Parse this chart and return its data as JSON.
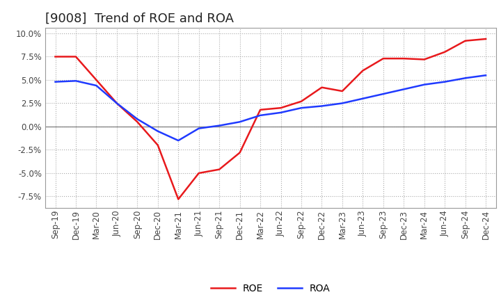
{
  "title": "[9008]  Trend of ROE and ROA",
  "x_labels": [
    "Sep-19",
    "Dec-19",
    "Mar-20",
    "Jun-20",
    "Sep-20",
    "Dec-20",
    "Mar-21",
    "Jun-21",
    "Sep-21",
    "Dec-21",
    "Mar-22",
    "Jun-22",
    "Sep-22",
    "Dec-22",
    "Mar-23",
    "Jun-23",
    "Sep-23",
    "Dec-23",
    "Mar-24",
    "Jun-24",
    "Sep-24",
    "Dec-24"
  ],
  "roe": [
    7.5,
    7.5,
    5.0,
    2.5,
    0.5,
    -2.0,
    -7.8,
    -5.0,
    -4.6,
    -2.8,
    1.8,
    2.0,
    2.7,
    4.2,
    3.8,
    6.0,
    7.3,
    7.3,
    7.2,
    8.0,
    9.2,
    9.4
  ],
  "roa": [
    4.8,
    4.9,
    4.4,
    2.5,
    0.8,
    -0.5,
    -1.5,
    -0.2,
    0.1,
    0.5,
    1.2,
    1.5,
    2.0,
    2.2,
    2.5,
    3.0,
    3.5,
    4.0,
    4.5,
    4.8,
    5.2,
    5.5
  ],
  "roe_color": "#e8191c",
  "roa_color": "#1f3aff",
  "ylim_min": -8.75,
  "ylim_max": 10.625,
  "yticks": [
    -7.5,
    -5.0,
    -2.5,
    0.0,
    2.5,
    5.0,
    7.5,
    10.0
  ],
  "background_color": "#ffffff",
  "plot_background": "#ffffff",
  "grid_color": "#aaaaaa",
  "title_fontsize": 13,
  "line_width": 1.8,
  "tick_fontsize": 8.5,
  "legend_fontsize": 10
}
